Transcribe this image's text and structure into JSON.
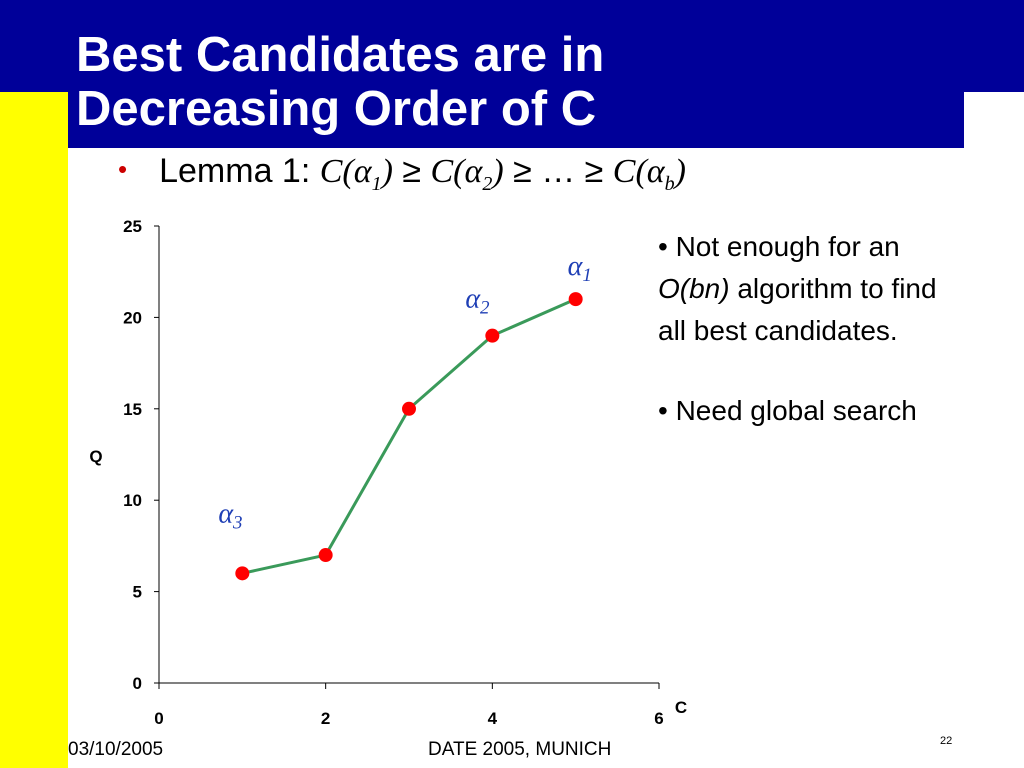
{
  "slide": {
    "title_line1": "Best Candidates are in",
    "title_line2": "Decreasing Order of C",
    "lemma": {
      "prefix": "Lemma 1: ",
      "c": "C(",
      "alpha": "α",
      "s1": "1",
      "s2": "2",
      "sb": "b",
      "close": ")",
      "ge": " ≥ ",
      "ellipsis": "…"
    },
    "notes": {
      "n1_a": "• Not enough for an",
      "n1_b_italic": "O(bn)",
      "n1_b_rest": " algorithm to find",
      "n1_c": "all best candidates.",
      "n2": "• Need global search"
    },
    "footer_date": "03/10/2005",
    "footer_event": "DATE 2005, MUNICH",
    "page_number": "22"
  },
  "colors": {
    "header": "#000099",
    "sidebar": "#ffff00",
    "line": "#3a9a5a",
    "marker": "#ff0000",
    "label": "#1f3fb5"
  },
  "chart_data": {
    "type": "line",
    "x": [
      1,
      2,
      3,
      4,
      5
    ],
    "series": [
      {
        "values": [
          6,
          7,
          15,
          19,
          21
        ]
      }
    ],
    "xlabel": "C",
    "ylabel": "Q",
    "xlim": [
      0,
      6
    ],
    "ylim": [
      0,
      25
    ],
    "xticks": [
      "0",
      "2",
      "4",
      "6"
    ],
    "yticks": [
      "0",
      "5",
      "10",
      "15",
      "20",
      "25"
    ],
    "grid": false,
    "annotations": [
      {
        "symbol": "α",
        "sub": "1",
        "x": 5,
        "y": 21
      },
      {
        "symbol": "α",
        "sub": "2",
        "x": 4,
        "y": 19
      },
      {
        "symbol": "α",
        "sub": "3",
        "x": 1,
        "y": 6
      }
    ]
  }
}
